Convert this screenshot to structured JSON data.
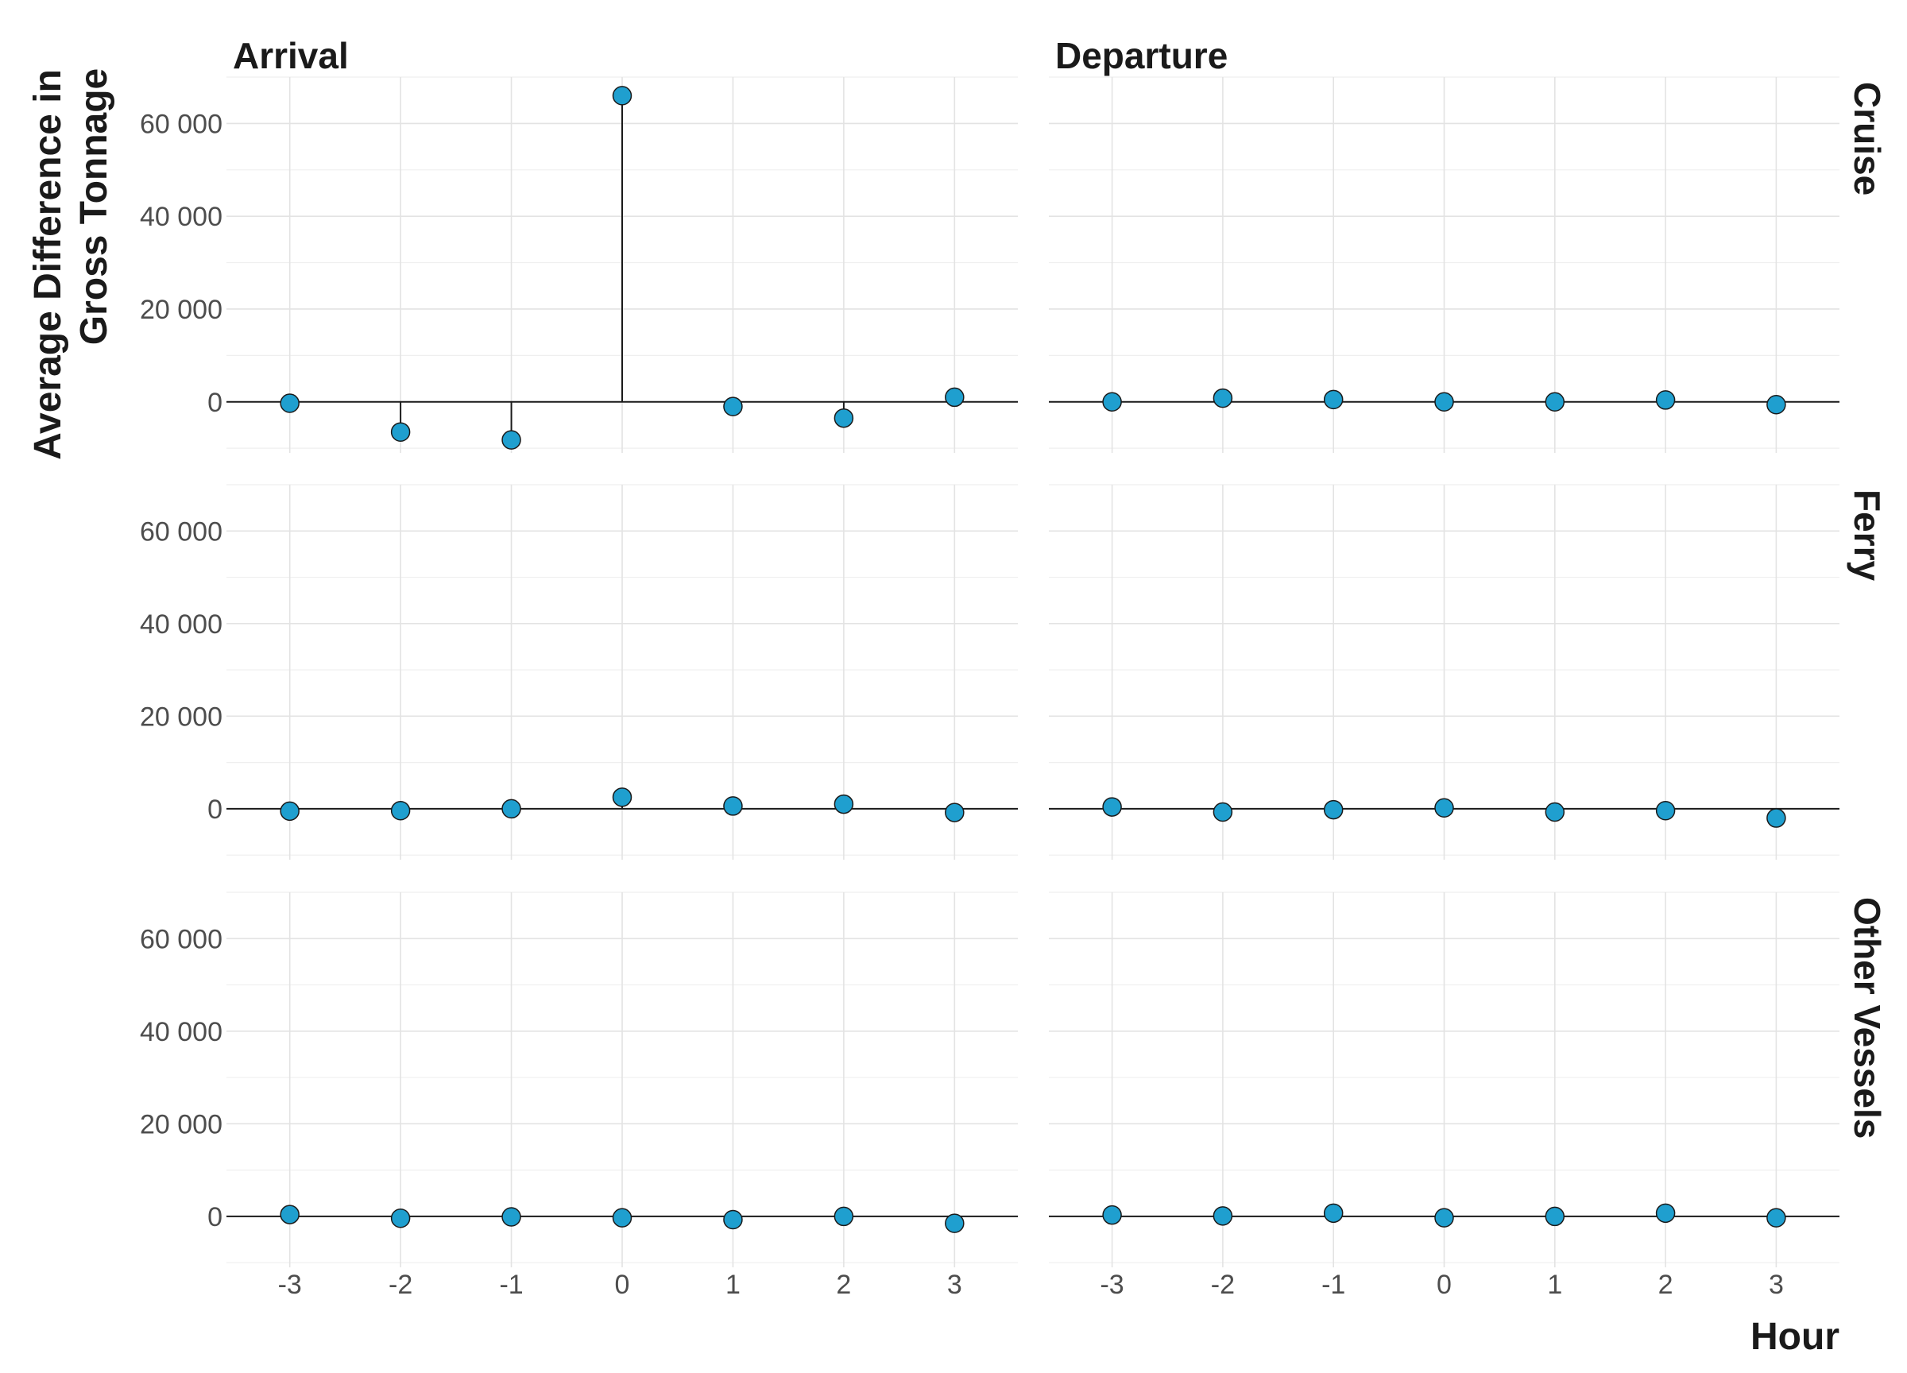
{
  "chart_data": {
    "type": "scatter",
    "subtype": "lollipop-facet-grid",
    "xlabel": "Hour",
    "ylabel_lines": [
      "Average Difference in",
      "Gross Tonnage"
    ],
    "columns": [
      "Arrival",
      "Departure"
    ],
    "rows": [
      "Cruise",
      "Ferry",
      "Other Vessels"
    ],
    "x": [
      -3,
      -2,
      -1,
      0,
      1,
      2,
      3
    ],
    "x_tick_labels": [
      "-3",
      "-2",
      "-1",
      "0",
      "1",
      "2",
      "3"
    ],
    "ylim": [
      -11000,
      70000
    ],
    "y_ticks": [
      0,
      20000,
      40000,
      60000
    ],
    "y_tick_labels": [
      "0",
      "20 000",
      "40 000",
      "60 000"
    ],
    "grid": true,
    "point_color": "#1f9fcf",
    "panels": [
      {
        "row": "Cruise",
        "column": "Arrival",
        "values": [
          -300,
          -6500,
          -8200,
          66000,
          -1000,
          -3500,
          1000
        ]
      },
      {
        "row": "Cruise",
        "column": "Departure",
        "values": [
          0,
          800,
          500,
          0,
          0,
          400,
          -600
        ]
      },
      {
        "row": "Ferry",
        "column": "Arrival",
        "values": [
          -500,
          -400,
          0,
          2500,
          600,
          1000,
          -800
        ]
      },
      {
        "row": "Ferry",
        "column": "Departure",
        "values": [
          400,
          -700,
          -200,
          200,
          -700,
          -400,
          -2000
        ]
      },
      {
        "row": "Other Vessels",
        "column": "Arrival",
        "values": [
          400,
          -400,
          -100,
          -300,
          -700,
          0,
          -1500
        ]
      },
      {
        "row": "Other Vessels",
        "column": "Departure",
        "values": [
          300,
          100,
          700,
          -300,
          0,
          700,
          -300
        ]
      }
    ]
  }
}
